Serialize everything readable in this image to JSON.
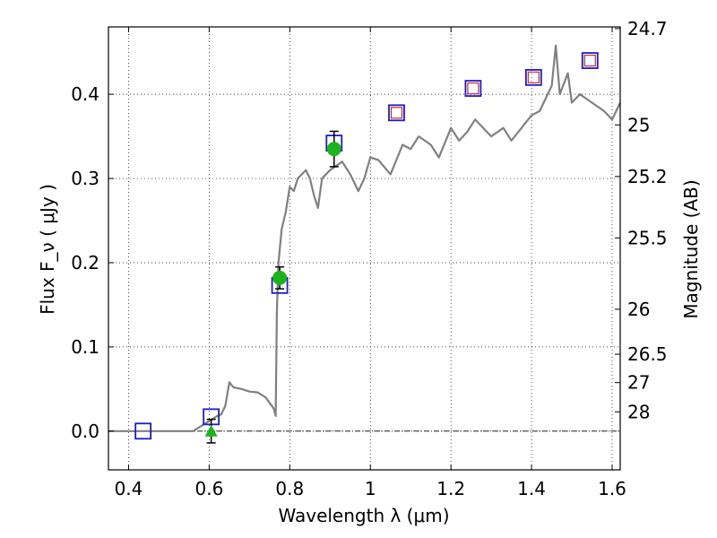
{
  "chart_data": {
    "type": "scatter",
    "xlabel": "Wavelength  λ (μm)",
    "ylabel": "Flux  F_ν  ( μJy )",
    "ylabel_right": "Magnitude (AB)",
    "xlim": [
      0.35,
      1.62
    ],
    "ylim": [
      -0.046,
      0.48
    ],
    "grid": true,
    "x_ticks": [
      {
        "value": 0.4,
        "label": "0.4"
      },
      {
        "value": 0.6,
        "label": "0.6"
      },
      {
        "value": 0.8,
        "label": "0.8"
      },
      {
        "value": 1.0,
        "label": "1"
      },
      {
        "value": 1.2,
        "label": "1.2"
      },
      {
        "value": 1.4,
        "label": "1.4"
      },
      {
        "value": 1.6,
        "label": "1.6"
      }
    ],
    "y_ticks": [
      {
        "value": 0.0,
        "label": "0.0"
      },
      {
        "value": 0.1,
        "label": "0.1"
      },
      {
        "value": 0.2,
        "label": "0.2"
      },
      {
        "value": 0.3,
        "label": "0.3"
      },
      {
        "value": 0.4,
        "label": "0.4"
      }
    ],
    "right_ticks": [
      {
        "label": "24.7",
        "flux": 0.478
      },
      {
        "label": "25",
        "flux": 0.3636
      },
      {
        "label": "25.2",
        "flux": 0.3024
      },
      {
        "label": "25.5",
        "flux": 0.2294
      },
      {
        "label": "26",
        "flux": 0.1447
      },
      {
        "label": "26.5",
        "flux": 0.0913
      },
      {
        "label": "27",
        "flux": 0.0576
      },
      {
        "label": "28",
        "flux": 0.0229
      }
    ],
    "series": [
      {
        "marker": "line",
        "color": "#808080",
        "x": [
          0.35,
          0.56,
          0.6,
          0.62,
          0.63,
          0.64,
          0.65,
          0.66,
          0.68,
          0.7,
          0.72,
          0.74,
          0.76,
          0.765,
          0.768,
          0.772,
          0.78,
          0.79,
          0.8,
          0.81,
          0.82,
          0.83,
          0.84,
          0.85,
          0.86,
          0.87,
          0.88,
          0.9,
          0.93,
          0.95,
          0.97,
          0.985,
          1.0,
          1.02,
          1.05,
          1.08,
          1.1,
          1.12,
          1.15,
          1.17,
          1.2,
          1.22,
          1.24,
          1.26,
          1.3,
          1.33,
          1.35,
          1.4,
          1.42,
          1.43,
          1.45,
          1.46,
          1.47,
          1.49,
          1.5,
          1.52,
          1.55,
          1.58,
          1.6,
          1.62
        ],
        "y": [
          0.0,
          0.0,
          0.012,
          0.018,
          0.02,
          0.03,
          0.058,
          0.052,
          0.05,
          0.047,
          0.046,
          0.04,
          0.027,
          0.018,
          0.14,
          0.2,
          0.24,
          0.26,
          0.29,
          0.285,
          0.3,
          0.305,
          0.31,
          0.3,
          0.28,
          0.265,
          0.3,
          0.31,
          0.32,
          0.305,
          0.285,
          0.3,
          0.325,
          0.322,
          0.305,
          0.34,
          0.335,
          0.35,
          0.34,
          0.325,
          0.36,
          0.345,
          0.355,
          0.37,
          0.35,
          0.36,
          0.345,
          0.375,
          0.38,
          0.39,
          0.41,
          0.458,
          0.4,
          0.425,
          0.39,
          0.4,
          0.39,
          0.38,
          0.37,
          0.39
        ]
      },
      {
        "marker": "open-square",
        "color": "#1c1ccc",
        "x": [
          0.436,
          0.605,
          0.775,
          0.91,
          1.065,
          1.255,
          1.405,
          1.545
        ],
        "y": [
          0.0,
          0.017,
          0.173,
          0.342,
          0.378,
          0.407,
          0.42,
          0.44
        ]
      },
      {
        "marker": "small-open-square",
        "color": "#d12a2a",
        "x": [
          1.065,
          1.255,
          1.405,
          1.545
        ],
        "y": [
          0.378,
          0.407,
          0.42,
          0.44
        ]
      },
      {
        "marker": "circle",
        "color": "#1db31d",
        "x": [
          0.775,
          0.91
        ],
        "y": [
          0.182,
          0.335
        ],
        "yerr": [
          0.013,
          0.021
        ]
      },
      {
        "marker": "triangle",
        "color": "#1db31d",
        "x": [
          0.605
        ],
        "y": [
          0.0
        ],
        "yerr": [
          0.014
        ]
      }
    ]
  }
}
